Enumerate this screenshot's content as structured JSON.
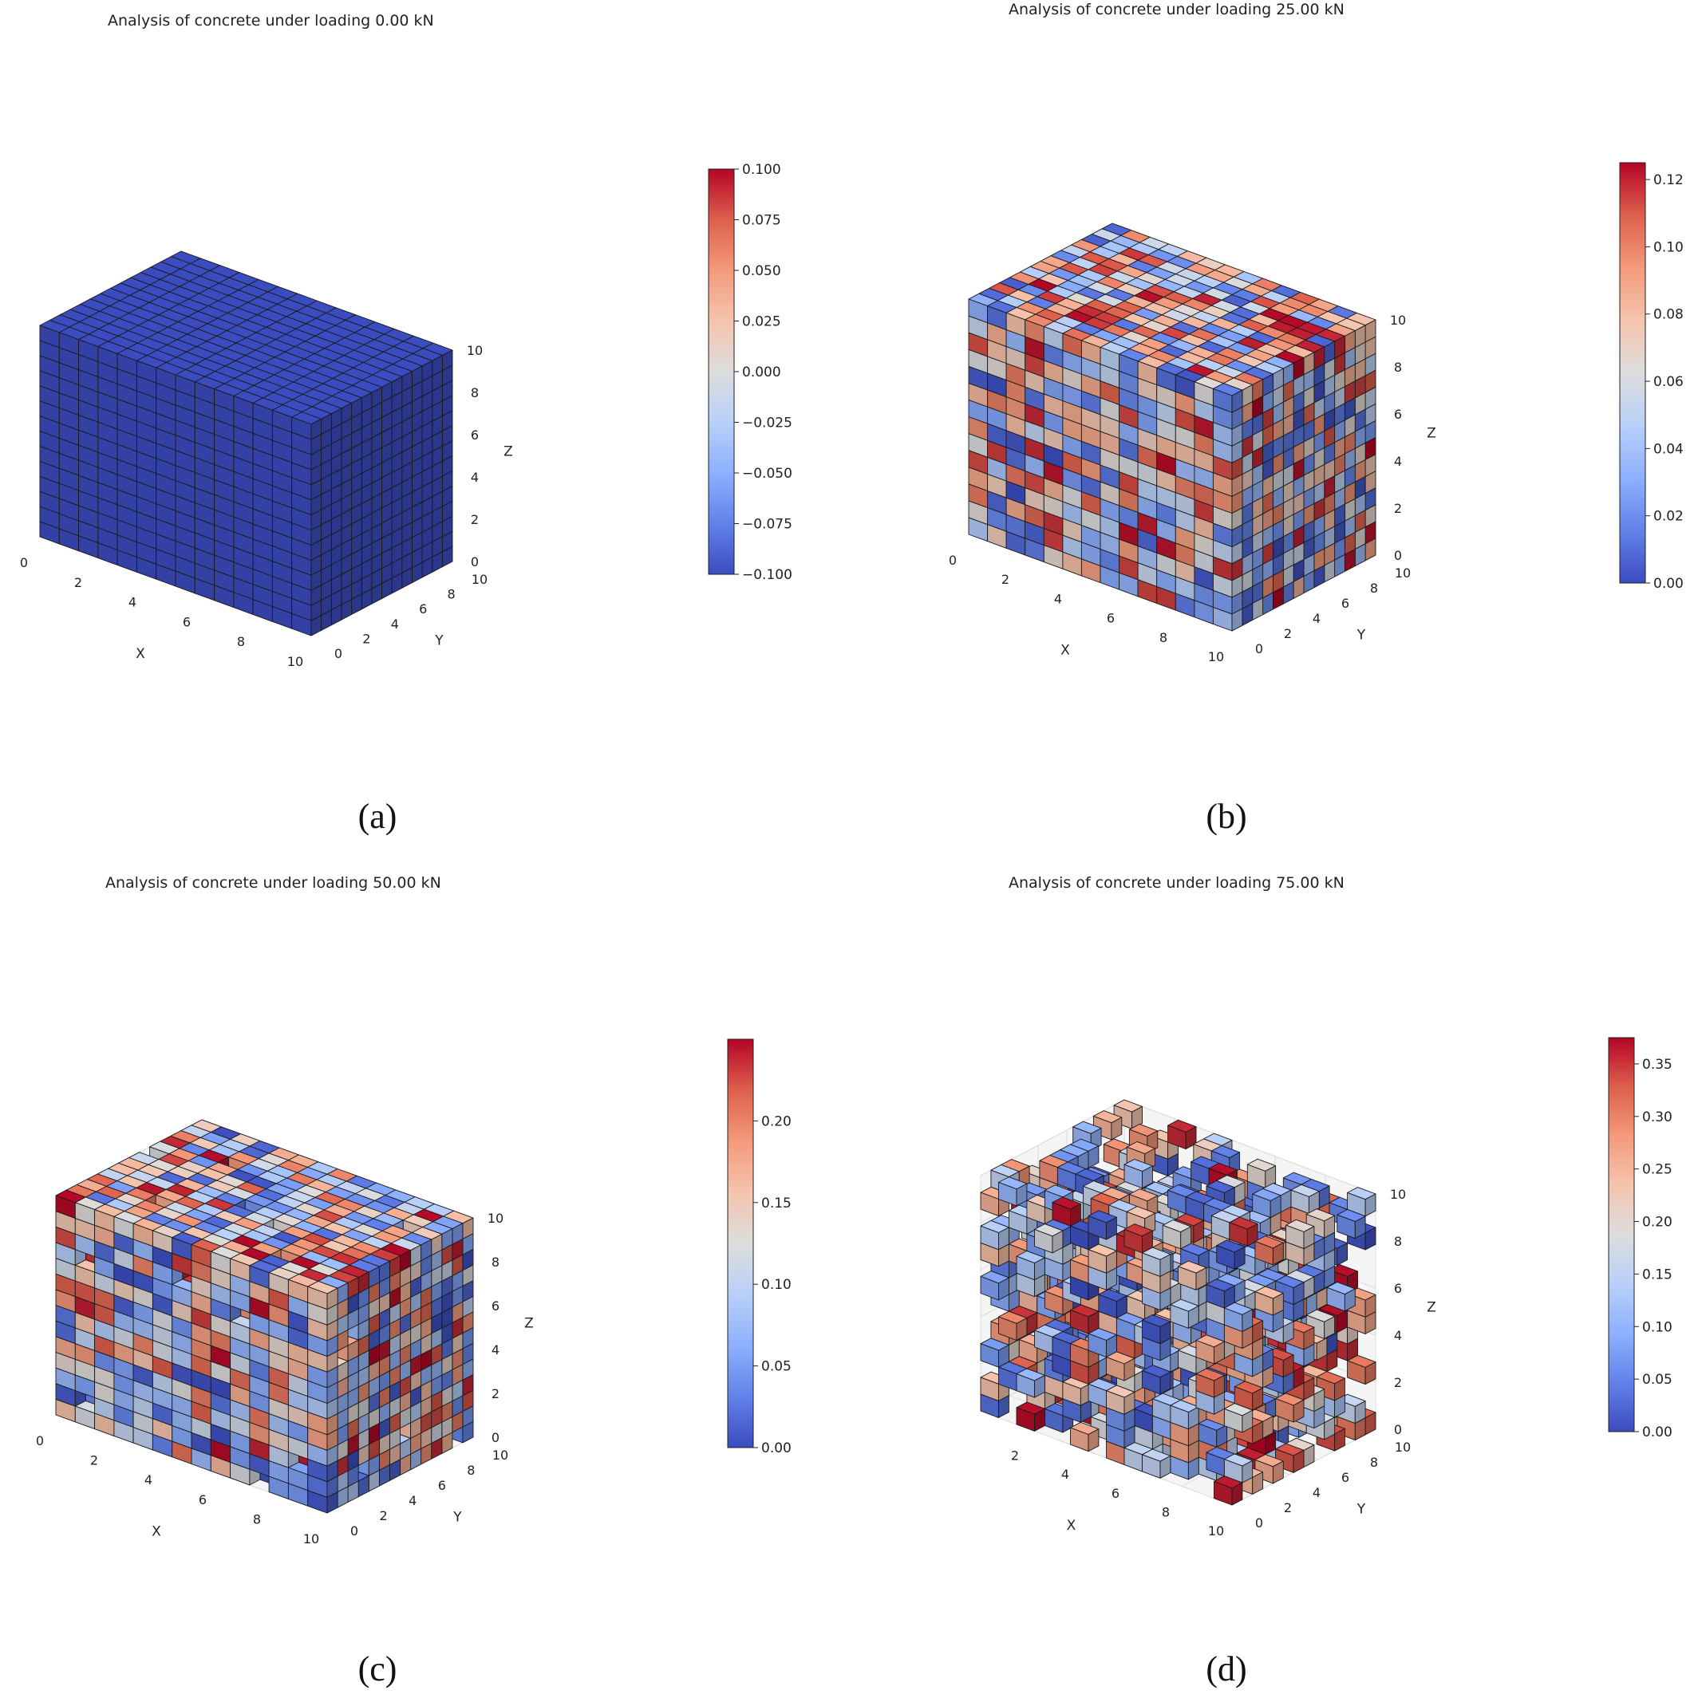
{
  "chart_data": [
    {
      "type": "voxel3d",
      "panel": "(a)",
      "title": "Analysis of concrete under loading 0.00 kN",
      "xlabel": "X",
      "ylabel": "Y",
      "zlabel": "Z",
      "xlim": [
        0,
        10
      ],
      "ylim": [
        0,
        10
      ],
      "zlim": [
        0,
        10
      ],
      "x_ticks": [
        "0",
        "2",
        "4",
        "6",
        "8",
        "10"
      ],
      "y_ticks": [
        "0",
        "2",
        "4",
        "6",
        "8",
        "10"
      ],
      "z_ticks": [
        "0",
        "2",
        "4",
        "6",
        "8",
        "10"
      ],
      "colorbar": {
        "range": [
          -0.1,
          0.1
        ],
        "ticks": [
          "0.100",
          "0.075",
          "0.050",
          "0.025",
          "0.000",
          "−0.025",
          "−0.050",
          "−0.075",
          "−0.100"
        ],
        "colormap": "coolwarm"
      },
      "fill_fraction": 1.0,
      "uniform_value": 0.0,
      "uniform_color": "#3b4cc0",
      "seed": 11
    },
    {
      "type": "voxel3d",
      "panel": "(b)",
      "title": "Analysis of concrete under loading 25.00 kN",
      "xlabel": "X",
      "ylabel": "Y",
      "zlabel": "Z",
      "xlim": [
        0,
        10
      ],
      "ylim": [
        0,
        10
      ],
      "zlim": [
        0,
        10
      ],
      "x_ticks": [
        "0",
        "2",
        "4",
        "6",
        "8",
        "10"
      ],
      "y_ticks": [
        "0",
        "2",
        "4",
        "6",
        "8",
        "10"
      ],
      "z_ticks": [
        "0",
        "2",
        "4",
        "6",
        "8",
        "10"
      ],
      "colorbar": {
        "range": [
          0,
          0.125
        ],
        "ticks": [
          "0.12",
          "0.10",
          "0.08",
          "0.06",
          "0.04",
          "0.02",
          "0.00"
        ],
        "colormap": "coolwarm"
      },
      "fill_fraction": 1.0,
      "seed": 23
    },
    {
      "type": "voxel3d",
      "panel": "(c)",
      "title": "Analysis of concrete under loading 50.00 kN",
      "xlabel": "X",
      "ylabel": "Y",
      "zlabel": "Z",
      "xlim": [
        0,
        10
      ],
      "ylim": [
        0,
        10
      ],
      "zlim": [
        0,
        10
      ],
      "x_ticks": [
        "0",
        "2",
        "4",
        "6",
        "8",
        "10"
      ],
      "y_ticks": [
        "0",
        "2",
        "4",
        "6",
        "8",
        "10"
      ],
      "z_ticks": [
        "0",
        "2",
        "4",
        "6",
        "8",
        "10"
      ],
      "colorbar": {
        "range": [
          0,
          0.25
        ],
        "ticks": [
          "0.20",
          "0.15",
          "0.10",
          "0.05",
          "0.00"
        ],
        "colormap": "coolwarm"
      },
      "fill_fraction": 0.97,
      "seed": 37
    },
    {
      "type": "voxel3d",
      "panel": "(d)",
      "title": "Analysis of concrete under loading 75.00 kN",
      "xlabel": "X",
      "ylabel": "Y",
      "zlabel": "Z",
      "xlim": [
        0,
        10
      ],
      "ylim": [
        0,
        10
      ],
      "zlim": [
        0,
        10
      ],
      "x_ticks": [
        "2",
        "4",
        "6",
        "8",
        "10"
      ],
      "y_ticks": [
        "0",
        "2",
        "4",
        "6",
        "8",
        "10"
      ],
      "z_ticks": [
        "0",
        "2",
        "4",
        "6",
        "8",
        "10"
      ],
      "colorbar": {
        "range": [
          0,
          0.375
        ],
        "ticks": [
          "0.35",
          "0.30",
          "0.25",
          "0.20",
          "0.15",
          "0.10",
          "0.05",
          "0.00"
        ],
        "colormap": "coolwarm"
      },
      "fill_fraction": 0.3,
      "seed": 53
    }
  ]
}
